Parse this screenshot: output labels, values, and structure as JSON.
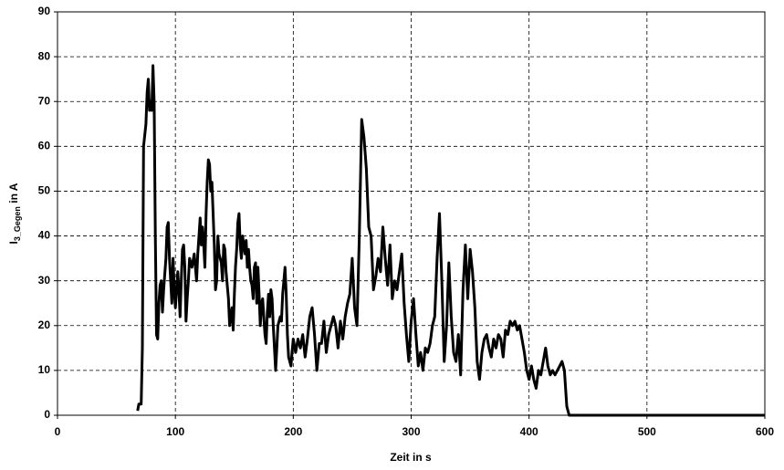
{
  "chart_data": {
    "type": "line",
    "xlabel": "Zeit in s",
    "ylabel": {
      "main": "I",
      "sub": "3_Gegen",
      "rest": " in A"
    },
    "xlim": [
      0,
      600
    ],
    "xticks": [
      0,
      100,
      200,
      300,
      400,
      500,
      600
    ],
    "ylim": [
      0,
      90
    ],
    "yticks": [
      0,
      10,
      20,
      30,
      40,
      50,
      60,
      70,
      80,
      90
    ],
    "grid": true,
    "series": [
      {
        "color": "#000000",
        "x": [
          68,
          69,
          71,
          72,
          73,
          75,
          76,
          77,
          78,
          79,
          80,
          81,
          82,
          83,
          84,
          85,
          86,
          87,
          88,
          89,
          90,
          92,
          93,
          94,
          95,
          96,
          97,
          98,
          99,
          100,
          102,
          103,
          104,
          105,
          106,
          107,
          108,
          109,
          110,
          111,
          112,
          114,
          116,
          118,
          119,
          120,
          121,
          122,
          123,
          124,
          125,
          126,
          127,
          128,
          129,
          130,
          131,
          132,
          133,
          134,
          135,
          136,
          137,
          138,
          139,
          140,
          141,
          142,
          143,
          145,
          146,
          147,
          148,
          149,
          150,
          151,
          152,
          153,
          154,
          155,
          156,
          157,
          158,
          159,
          160,
          161,
          162,
          163,
          164,
          165,
          166,
          167,
          168,
          169,
          170,
          171,
          172,
          173,
          174,
          175,
          176,
          177,
          178,
          179,
          180,
          181,
          182,
          183,
          184,
          185,
          186,
          187,
          188,
          189,
          190,
          191,
          192,
          193,
          194,
          195,
          196,
          197,
          198,
          199,
          200,
          202,
          204,
          206,
          208,
          210,
          212,
          214,
          216,
          218,
          220,
          222,
          224,
          226,
          228,
          230,
          232,
          234,
          236,
          238,
          240,
          242,
          244,
          246,
          248,
          250,
          252,
          254,
          256,
          258,
          260,
          262,
          264,
          266,
          268,
          270,
          272,
          274,
          276,
          278,
          280,
          282,
          284,
          286,
          288,
          290,
          292,
          294,
          296,
          298,
          300,
          302,
          304,
          306,
          308,
          310,
          312,
          314,
          316,
          318,
          320,
          322,
          324,
          326,
          328,
          330,
          332,
          334,
          336,
          338,
          340,
          342,
          344,
          346,
          348,
          350,
          352,
          354,
          356,
          358,
          360,
          362,
          364,
          366,
          368,
          370,
          372,
          374,
          376,
          378,
          380,
          382,
          384,
          386,
          388,
          390,
          392,
          394,
          396,
          398,
          400,
          402,
          404,
          406,
          408,
          410,
          412,
          414,
          416,
          418,
          420,
          422,
          424,
          426,
          428,
          430,
          432,
          434,
          600
        ],
        "values": [
          1,
          2.5,
          2.5,
          15,
          60,
          65,
          72,
          75,
          68,
          70,
          68,
          78,
          70,
          40,
          18,
          17,
          25,
          29,
          30,
          23,
          28,
          35,
          42,
          43,
          35,
          30,
          25,
          35,
          28,
          24,
          32,
          28,
          22,
          30,
          37,
          38,
          33,
          21,
          26,
          30,
          35,
          33,
          36,
          30,
          36,
          40,
          44,
          38,
          42,
          38,
          33,
          45,
          52,
          57,
          56,
          50,
          52,
          45,
          38,
          28,
          30,
          40,
          36,
          35,
          34,
          30,
          38,
          37,
          32,
          26,
          20,
          22,
          24,
          19,
          27,
          33,
          37,
          43,
          45,
          38,
          35,
          40,
          38,
          36,
          39,
          33,
          37,
          33,
          30,
          29,
          26,
          33,
          34,
          25,
          33,
          27,
          20,
          25,
          26,
          22,
          18,
          16,
          23,
          27,
          22,
          28,
          26,
          20,
          15,
          10,
          15,
          20,
          21,
          22,
          21,
          27,
          30,
          33,
          27,
          18,
          13,
          12,
          11,
          14,
          17,
          14,
          17,
          15,
          18,
          13,
          17,
          22,
          24,
          18,
          10,
          16,
          16,
          21,
          14,
          18,
          20,
          22,
          20,
          15,
          21,
          17,
          22,
          25,
          27,
          35,
          24,
          20,
          40,
          66,
          62,
          55,
          42,
          40,
          28,
          31,
          35,
          32,
          42,
          35,
          29,
          38,
          26,
          30,
          28,
          32,
          36,
          25,
          18,
          12,
          21,
          26,
          18,
          11,
          14,
          10,
          15,
          14,
          16,
          20,
          22,
          35,
          45,
          30,
          12,
          20,
          34,
          22,
          14,
          12,
          18,
          9,
          28,
          38,
          26,
          37,
          32,
          24,
          12,
          8,
          14,
          17,
          18,
          15,
          13,
          17,
          15,
          18,
          17,
          13,
          19,
          18,
          21,
          20,
          21,
          19,
          20,
          17,
          14,
          10,
          8,
          11,
          8,
          6,
          10,
          9,
          12,
          15,
          11,
          9,
          10,
          9,
          10,
          11,
          12,
          10,
          2,
          0,
          0
        ]
      }
    ]
  }
}
